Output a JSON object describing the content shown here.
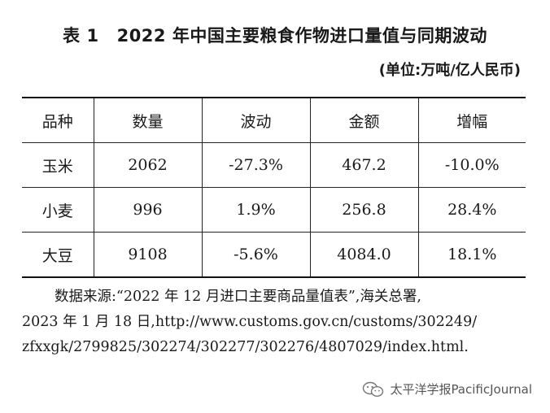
{
  "title": {
    "label": "表 1",
    "text": "2022 年中国主要粮食作物进口量值与同期波动"
  },
  "unit": "(单位:万吨/亿人民币)",
  "table": {
    "headers": [
      "品种",
      "数量",
      "波动",
      "金额",
      "增幅"
    ],
    "rows": [
      [
        "玉米",
        "2062",
        "-27.3%",
        "467.2",
        "-10.0%"
      ],
      [
        "小麦",
        "996",
        "1.9%",
        "256.8",
        "28.4%"
      ],
      [
        "大豆",
        "9108",
        "-5.6%",
        "4084.0",
        "18.1%"
      ]
    ]
  },
  "source": {
    "line1": "数据来源:“2022 年 12 月进口主要商品量值表”,海关总署,",
    "line2": "2023 年 1 月 18 日,http://www.customs.gov.cn/customs/302249/",
    "line3": "zfxxgk/2799825/302274/302277/302276/4807029/index.html."
  },
  "watermark": {
    "icon": "wechat-icon",
    "text": "太平洋学报PacificJournal"
  }
}
